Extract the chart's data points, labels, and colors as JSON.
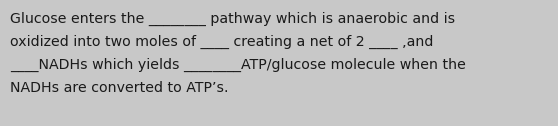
{
  "background_color": "#c8c8c8",
  "text_color": "#1a1a1a",
  "lines": [
    "Glucose enters the ________ pathway which is anaerobic and is",
    "oxidized into two moles of ____ creating a net of 2 ____ ,and",
    "____NADHs which yields ________ATP/glucose molecule when the",
    "NADHs are converted to ATP’s."
  ],
  "font_size": 10.2,
  "font_family": "DejaVu Sans",
  "figsize": [
    5.58,
    1.26
  ],
  "dpi": 100
}
